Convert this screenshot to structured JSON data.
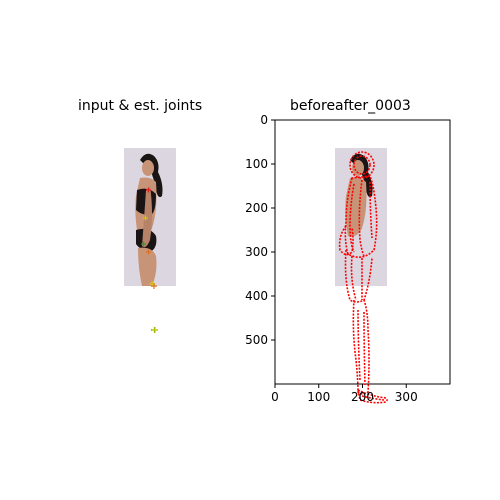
{
  "left_panel": {
    "title": "input & est. joints"
  },
  "right_panel": {
    "title": "beforeafter_0003",
    "x_ticks": [
      "0",
      "100",
      "200",
      "300"
    ],
    "y_ticks": [
      "0",
      "100",
      "200",
      "300",
      "400",
      "500"
    ],
    "xlim": [
      0,
      400
    ],
    "ylim": [
      600,
      0
    ]
  },
  "colors": {
    "mesh": "#ff0000",
    "skin": "#c89478",
    "hair": "#1a1414",
    "backdrop": "#dcd6e0",
    "joint_green": "#2aa02a",
    "joint_yellow": "#d8c800",
    "joint_orange": "#e07020"
  }
}
